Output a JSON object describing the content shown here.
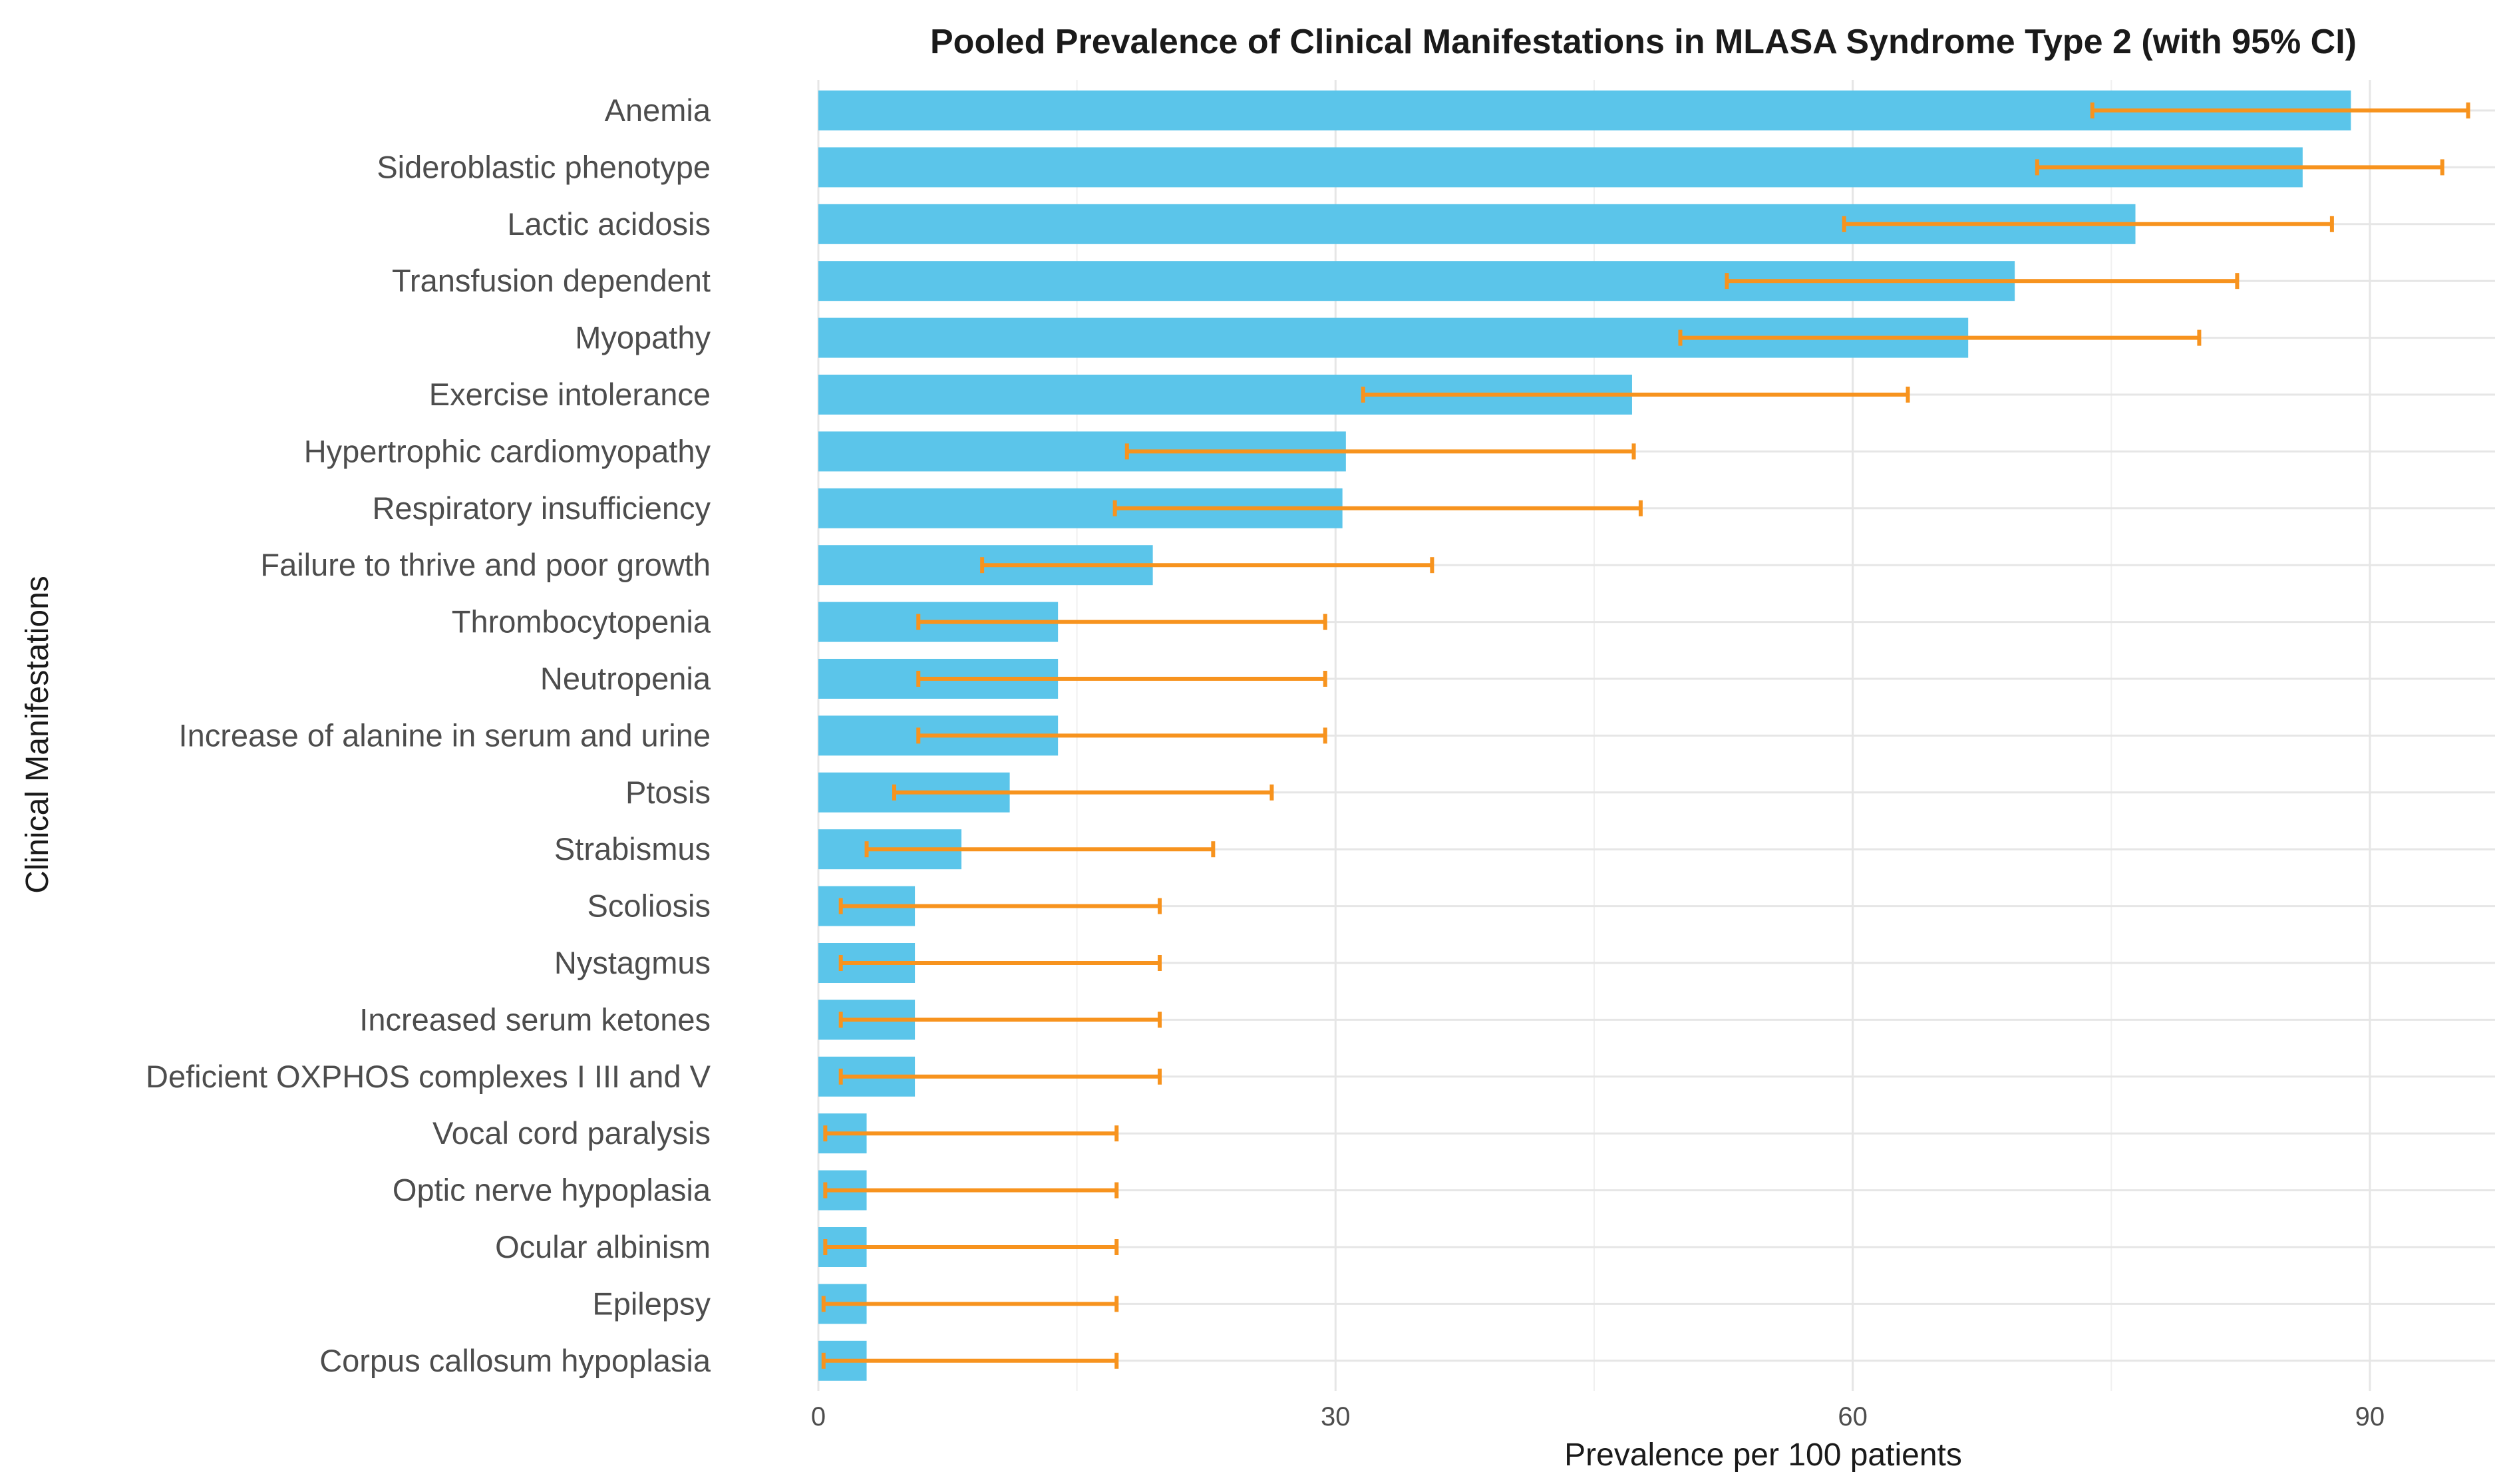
{
  "chart_data": {
    "type": "bar",
    "orientation": "horizontal",
    "title": "Pooled Prevalence of Clinical Manifestations in MLASA Syndrome Type 2 (with 95% CI)",
    "xlabel": "Prevalence per 100 patients",
    "ylabel": "Clinical Manifestations",
    "xlim": [
      0,
      97
    ],
    "xticks": [
      0,
      30,
      60,
      90
    ],
    "xtick_labels": [
      "0",
      "30",
      "60",
      "90"
    ],
    "grid": true,
    "colors": {
      "bar": "#5bc5ea",
      "error_bar": "#f7931e"
    },
    "categories": [
      "Anemia",
      "Sideroblastic phenotype",
      "Lactic acidosis",
      "Transfusion dependent",
      "Myopathy",
      "Exercise intolerance",
      "Hypertrophic cardiomyopathy",
      "Respiratory insufficiency",
      "Failure to thrive and poor growth",
      "Thrombocytopenia",
      "Neutropenia",
      "Increase of alanine in serum and urine",
      "Ptosis",
      "Strabismus",
      "Scoliosis",
      "Nystagmus",
      "Increased serum ketones",
      "Deficient OXPHOS complexes I III and V",
      "Vocal cord paralysis",
      "Optic nerve hypoplasia",
      "Ocular albinism",
      "Epilepsy",
      "Corpus callosum hypoplasia"
    ],
    "values": [
      88.9,
      86.1,
      76.4,
      69.4,
      66.7,
      47.2,
      30.6,
      30.4,
      19.4,
      13.9,
      13.9,
      13.9,
      11.1,
      8.3,
      5.6,
      5.6,
      5.6,
      5.6,
      2.8,
      2.8,
      2.8,
      2.8,
      2.8
    ],
    "ci_lower": [
      73.9,
      70.7,
      59.5,
      52.7,
      50.0,
      31.6,
      17.9,
      17.2,
      9.5,
      5.8,
      5.8,
      5.8,
      4.4,
      2.8,
      1.3,
      1.3,
      1.3,
      1.3,
      0.4,
      0.4,
      0.4,
      0.3,
      0.3
    ],
    "ci_upper": [
      95.7,
      94.2,
      87.8,
      82.3,
      80.1,
      63.2,
      47.3,
      47.7,
      35.6,
      29.4,
      29.4,
      29.4,
      26.3,
      22.9,
      19.8,
      19.8,
      19.8,
      19.8,
      17.3,
      17.3,
      17.3,
      17.3,
      17.3
    ]
  }
}
